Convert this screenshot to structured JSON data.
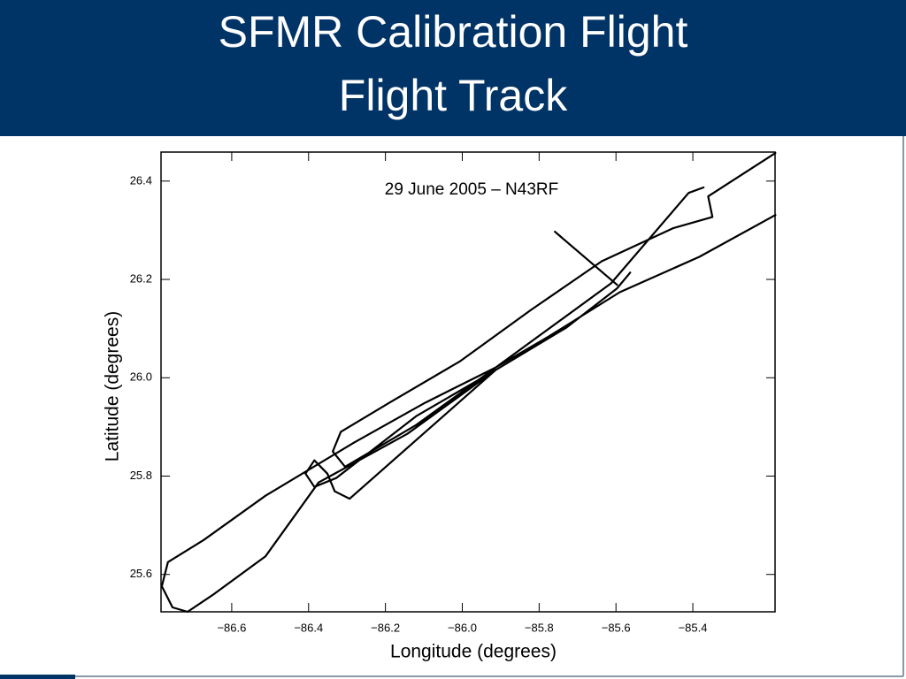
{
  "chart_data": {
    "type": "line",
    "title": "SFMR Calibration Flight",
    "subtitle": "Flight Track",
    "annotation": "29 June 2005 – N43RF",
    "xlabel": "Longitude (degrees)",
    "ylabel": "Latitude (degrees)",
    "xlim": [
      -86.784,
      -85.186
    ],
    "ylim": [
      25.524,
      26.459
    ],
    "xticks": [
      {
        "value": -86.6,
        "label": "−86.6"
      },
      {
        "value": -86.4,
        "label": "−86.4"
      },
      {
        "value": -86.2,
        "label": "−86.2"
      },
      {
        "value": -86.0,
        "label": "−86.0"
      },
      {
        "value": -85.8,
        "label": "−85.8"
      },
      {
        "value": -85.6,
        "label": "−85.6"
      },
      {
        "value": -85.4,
        "label": "−85.4"
      }
    ],
    "yticks": [
      25.6,
      25.8,
      {
        "value": 26,
        "label": "26.0"
      },
      26.2,
      26.4
    ],
    "series": [
      {
        "color": "#000000",
        "x": [
          -85.185,
          -85.383,
          -85.59,
          -85.775,
          -85.913,
          -86.097,
          -86.282,
          -86.512,
          -86.673,
          -86.766,
          -86.782,
          -86.754,
          -86.715,
          -86.65,
          -86.512,
          -86.374,
          -86.143,
          -85.913,
          -85.729,
          -85.597,
          -85.563,
          null,
          -85.759,
          -85.597,
          null,
          -85.185,
          -85.36,
          -85.349,
          -85.452,
          -85.637,
          -85.821,
          -86.005,
          -86.19,
          -86.316,
          -86.337,
          -86.305,
          -86.12,
          -85.913,
          -85.613,
          -85.411,
          -85.372,
          null,
          -85.913,
          -86.293,
          -86.332,
          -86.351,
          -86.385,
          -86.408,
          -86.385,
          -86.328,
          -86.12,
          -85.913
        ],
        "values": [
          26.331,
          26.246,
          26.174,
          26.084,
          26.021,
          25.949,
          25.868,
          25.76,
          25.67,
          25.625,
          25.576,
          25.533,
          25.524,
          25.558,
          25.637,
          25.787,
          25.886,
          26.016,
          26.102,
          26.182,
          26.214,
          null,
          26.297,
          26.189,
          null,
          26.457,
          26.369,
          26.327,
          26.304,
          26.237,
          26.138,
          26.034,
          25.949,
          25.89,
          25.85,
          25.819,
          25.904,
          26.021,
          26.192,
          26.376,
          26.387,
          null,
          26.016,
          25.754,
          25.769,
          25.805,
          25.832,
          25.805,
          25.778,
          25.796,
          25.922,
          26.016
        ]
      }
    ]
  }
}
